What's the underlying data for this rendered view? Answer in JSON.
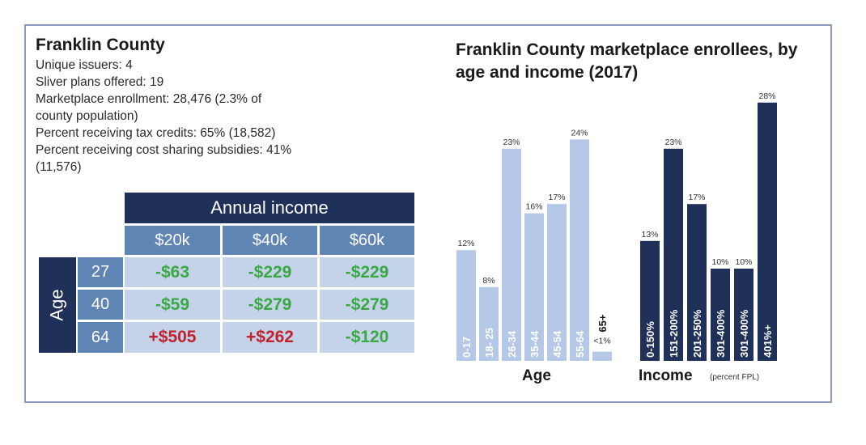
{
  "county_info": {
    "title": "Franklin County",
    "lines": [
      "Unique issuers: 4",
      "Sliver plans offered: 19",
      "Marketplace enrollment: 28,476 (2.3% of",
      "county population)",
      "Percent receiving tax credits: 65% (18,582)",
      "Percent receiving cost sharing subsidies: 41%",
      "(11,576)"
    ]
  },
  "premium_table": {
    "income_header": "Annual income",
    "age_header": "Age",
    "columns": [
      "$20k",
      "$40k",
      "$60k"
    ],
    "rows": [
      {
        "age": "27",
        "values": [
          "-$63",
          "-$229",
          "-$229"
        ]
      },
      {
        "age": "40",
        "values": [
          "-$59",
          "-$279",
          "-$279"
        ]
      },
      {
        "age": "64",
        "values": [
          "+$505",
          "+$262",
          "-$120"
        ]
      }
    ]
  },
  "colors": {
    "light_bar": "#b5c8e8",
    "dark_bar": "#1f3158",
    "positive_text": "#c0222e",
    "negative_text": "#3aa845"
  },
  "chart_data": {
    "title": "Franklin County marketplace enrollees, by age and income (2017)",
    "charts": [
      {
        "type": "bar",
        "xlabel": "Age",
        "categories": [
          "0-17",
          "18- 25",
          "26-34",
          "35-44",
          "45-54",
          "55-64",
          "65+"
        ],
        "values": [
          12,
          8,
          23,
          16,
          17,
          24,
          1
        ],
        "value_labels": [
          "12%",
          "8%",
          "23%",
          "16%",
          "17%",
          "24%",
          "<1%"
        ],
        "ylim": [
          0,
          28
        ]
      },
      {
        "type": "bar",
        "xlabel": "Income",
        "xlabel_note": "(percent FPL)",
        "categories": [
          "0-150%",
          "151-200%",
          "201-250%",
          "301-400%",
          "301-400%",
          "401%+"
        ],
        "values": [
          13,
          23,
          17,
          10,
          10,
          28
        ],
        "value_labels": [
          "13%",
          "23%",
          "17%",
          "10%",
          "10%",
          "28%"
        ],
        "ylim": [
          0,
          28
        ]
      }
    ]
  }
}
